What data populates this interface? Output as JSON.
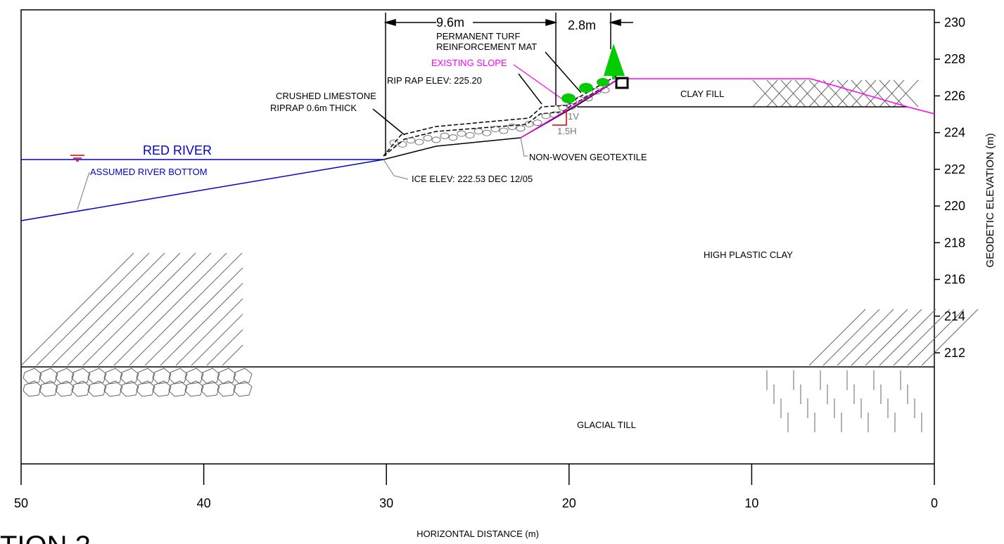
{
  "axes": {
    "x_label": "HORIZONTAL DISTANCE (m)",
    "x_ticks": [
      50,
      40,
      30,
      20,
      10,
      0
    ],
    "y_label": "GEODETIC ELEVATION (m)",
    "y_ticks": [
      230,
      228,
      226,
      224,
      222,
      220,
      218,
      216,
      214,
      212
    ]
  },
  "annotations": {
    "dim_left": "9.6m",
    "dim_right": "2.8m",
    "turf_1": "PERMANENT TURF",
    "turf_2": "REINFORCEMENT MAT",
    "existing_slope": "EXISTING SLOPE",
    "riprap_elev": "RIP RAP ELEV: 225.20",
    "limestone_1": "CRUSHED LIMESTONE",
    "limestone_2": "RIPRAP 0.6m THICK",
    "clay_fill": "CLAY FILL",
    "slope_v": "1V",
    "slope_h": "1.5H",
    "red_river": "RED RIVER",
    "river_bottom": "ASSUMED RIVER BOTTOM",
    "geotextile": "NON-WOVEN GEOTEXTILE",
    "ice_elev": "ICE  ELEV: 222.53 DEC 12/05",
    "high_plastic_clay": "HIGH PLASTIC CLAY",
    "glacial_till": "GLACIAL TILL",
    "section": "TION  2"
  }
}
